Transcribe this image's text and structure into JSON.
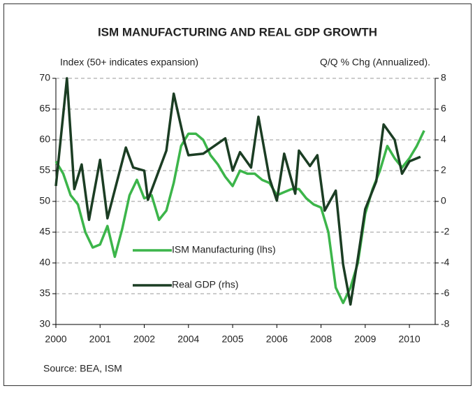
{
  "chart_data": {
    "type": "line",
    "title": "ISM MANUFACTURING AND REAL GDP GROWTH",
    "ylabel": "Index (50+ indicates expansion)",
    "y2label": "Q/Q % Chg (Annualized).",
    "source": "Source: BEA, ISM",
    "xlim": [
      0,
      103
    ],
    "xticks": [
      {
        "value": 0,
        "label": "2000"
      },
      {
        "value": 12,
        "label": "2001"
      },
      {
        "value": 24,
        "label": "2002"
      },
      {
        "value": 36,
        "label": "2004"
      },
      {
        "value": 48,
        "label": "2005"
      },
      {
        "value": 60,
        "label": "2006"
      },
      {
        "value": 72,
        "label": "2008"
      },
      {
        "value": 84,
        "label": "2009"
      },
      {
        "value": 96,
        "label": "2010"
      }
    ],
    "ylim": [
      30,
      70
    ],
    "yticks": [
      30,
      35,
      40,
      45,
      50,
      55,
      60,
      65,
      70
    ],
    "y2lim": [
      -8,
      8
    ],
    "y2ticks": [
      -8,
      -6,
      -4,
      -2,
      0,
      2,
      4,
      6,
      8
    ],
    "grid": true,
    "series": [
      {
        "name": "ISM Manufacturing (lhs)",
        "color": "#3cb54a",
        "axis": "y",
        "x": [
          0,
          2,
          4,
          6,
          8,
          10,
          12,
          14,
          16,
          18,
          20,
          22,
          24,
          26,
          28,
          30,
          32,
          34,
          36,
          38,
          40,
          42,
          44,
          46,
          48,
          50,
          52,
          54,
          56,
          58,
          60,
          62,
          64,
          66,
          68,
          70,
          72,
          74,
          76,
          78,
          80,
          82,
          84,
          86,
          88,
          90,
          92,
          94,
          96,
          98,
          100
        ],
        "values": [
          56.5,
          54.5,
          51,
          49.5,
          45,
          42.5,
          43,
          46,
          41,
          45.5,
          51,
          53.5,
          50.5,
          51,
          47,
          48.5,
          53,
          59,
          61,
          61,
          60,
          57.5,
          56,
          54,
          52.5,
          55,
          54.5,
          54.5,
          53.5,
          53,
          51,
          51.5,
          52,
          52,
          50.5,
          49.5,
          49,
          45,
          36,
          33.5,
          36,
          40,
          48,
          52,
          55,
          59,
          57,
          55.5,
          57,
          59,
          61.5
        ]
      },
      {
        "name": "Real GDP (rhs)",
        "color": "#1b3d23",
        "axis": "y2",
        "x": [
          0,
          3,
          5,
          7,
          9,
          12,
          14,
          19,
          21,
          24,
          25,
          30,
          32,
          35,
          36,
          40,
          46,
          48,
          50,
          53,
          55,
          58,
          60,
          62,
          65,
          66,
          69,
          71,
          73,
          76,
          78,
          80,
          82,
          84,
          87,
          89,
          92,
          94,
          96,
          99
        ],
        "values": [
          1.0,
          8.0,
          0.8,
          2.4,
          -1.2,
          2.7,
          -1.1,
          3.5,
          2.2,
          2.0,
          0.1,
          3.3,
          7.0,
          3.8,
          3.0,
          3.1,
          4.1,
          2.0,
          3.2,
          2.2,
          5.5,
          1.5,
          0.05,
          3.1,
          0.5,
          3.3,
          2.3,
          3.0,
          -0.6,
          0.7,
          -4.1,
          -6.7,
          -3.7,
          -0.5,
          1.3,
          5.0,
          4.0,
          1.8,
          2.6,
          2.9
        ]
      }
    ]
  }
}
